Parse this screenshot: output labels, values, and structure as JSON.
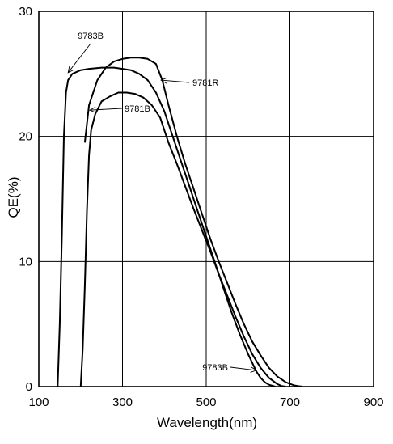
{
  "chart_data": {
    "type": "line",
    "xlabel": "Wavelength(nm)",
    "ylabel": "QE(%)",
    "xlim": [
      100,
      900
    ],
    "ylim": [
      0,
      30
    ],
    "xticks": [
      "100",
      "300",
      "500",
      "700",
      "900"
    ],
    "yticks": [
      "0",
      "10",
      "20",
      "30"
    ],
    "xtick_values": [
      100,
      300,
      500,
      700,
      900
    ],
    "ytick_values": [
      0,
      10,
      20,
      30
    ],
    "grid": true,
    "series": [
      {
        "name": "9783B",
        "x": [
          145,
          150,
          155,
          160,
          165,
          170,
          180,
          200,
          220,
          250,
          280,
          300,
          320,
          340,
          360,
          380,
          400,
          420,
          440,
          460,
          480,
          500,
          520,
          540,
          560,
          580,
          600,
          620,
          630,
          640,
          650,
          660,
          665
        ],
        "y": [
          0,
          5,
          12,
          20,
          23.5,
          24.5,
          25,
          25.3,
          25.4,
          25.5,
          25.5,
          25.4,
          25.3,
          25,
          24.5,
          23.5,
          22,
          20,
          18,
          16,
          14,
          12,
          10,
          8,
          6,
          4.2,
          2.6,
          1.2,
          0.7,
          0.35,
          0.15,
          0.05,
          0
        ]
      },
      {
        "name": "9781B",
        "x": [
          200,
          205,
          210,
          215,
          220,
          225,
          235,
          250,
          270,
          290,
          310,
          330,
          350,
          370,
          390,
          410,
          430,
          450,
          470,
          490,
          510,
          530,
          550,
          570,
          590,
          610,
          630,
          650,
          670,
          680,
          690
        ],
        "y": [
          0,
          3,
          8,
          14,
          18.5,
          20.5,
          21.8,
          22.8,
          23.2,
          23.5,
          23.5,
          23.4,
          23.1,
          22.5,
          21.5,
          19.5,
          17.8,
          16,
          14.2,
          12.5,
          10.8,
          9,
          7.3,
          5.6,
          4,
          2.6,
          1.5,
          0.7,
          0.2,
          0.05,
          0
        ]
      },
      {
        "name": "9781R",
        "x": [
          210,
          220,
          240,
          260,
          280,
          300,
          320,
          340,
          360,
          380,
          395,
          410,
          430,
          450,
          470,
          490,
          510,
          530,
          550,
          570,
          590,
          610,
          630,
          650,
          670,
          690,
          710,
          720,
          730
        ],
        "y": [
          19.5,
          22.5,
          24.5,
          25.5,
          26,
          26.2,
          26.3,
          26.3,
          26.2,
          25.8,
          24.5,
          22.5,
          20,
          17.8,
          15.8,
          13.8,
          11.8,
          10,
          8.3,
          6.6,
          5,
          3.6,
          2.5,
          1.5,
          0.8,
          0.35,
          0.1,
          0.04,
          0
        ]
      }
    ],
    "annotations": [
      {
        "text": "9783B",
        "arrow_to": [
          170,
          25.1
        ]
      },
      {
        "text": "9781B",
        "arrow_to": [
          222,
          22.1
        ]
      },
      {
        "text": "9781R",
        "arrow_to": [
          392,
          24.5
        ]
      },
      {
        "text": "9783B",
        "arrow_to": [
          620,
          1.3
        ]
      }
    ]
  }
}
